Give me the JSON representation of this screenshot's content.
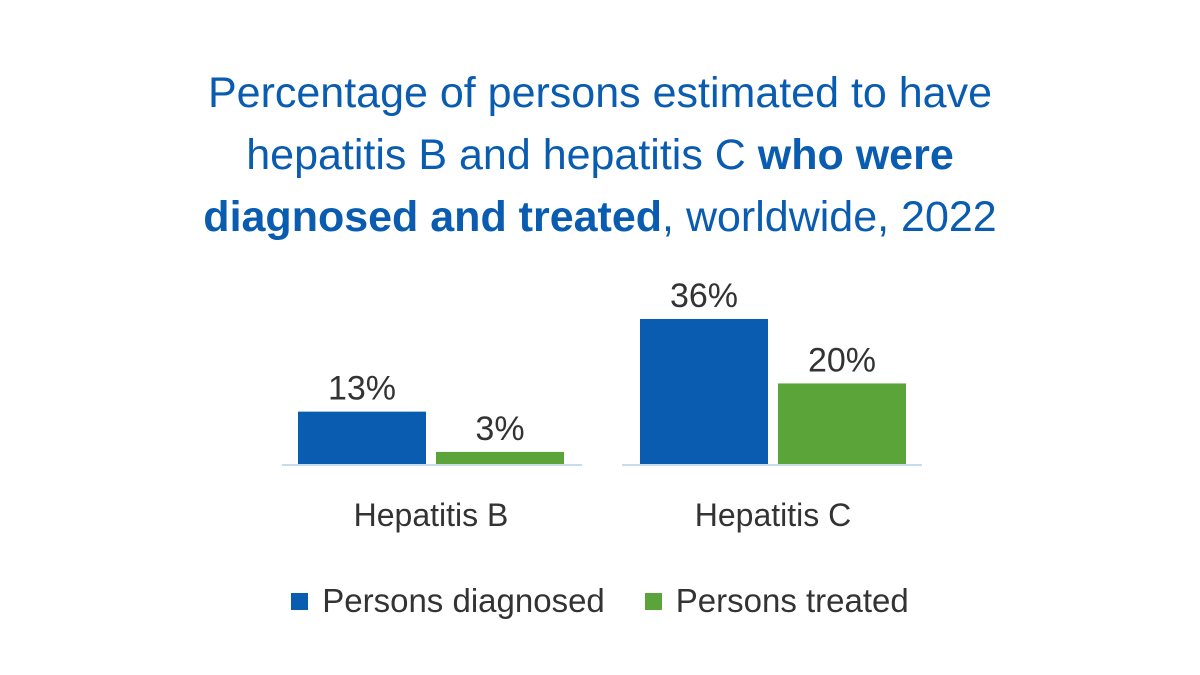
{
  "title": {
    "line1": "Percentage of persons estimated to have",
    "line2_normal": "hepatitis B and hepatitis C ",
    "line2_bold": "who were",
    "line3_bold": "diagnosed and treated",
    "line3_normal": ", worldwide, 2022"
  },
  "colors": {
    "title": "#0a5cb0",
    "diagnosed": "#0a5cb0",
    "treated": "#5aa43a",
    "baseline": "#c9dcee"
  },
  "chart_data": {
    "type": "bar",
    "categories": [
      "Hepatitis B",
      "Hepatitis C"
    ],
    "series": [
      {
        "name": "Persons diagnosed",
        "values": [
          13,
          36
        ],
        "labels": [
          "13%",
          "36%"
        ]
      },
      {
        "name": "Persons treated",
        "values": [
          3,
          20
        ],
        "labels": [
          "3%",
          "20%"
        ]
      }
    ],
    "title": "Percentage of persons estimated to have hepatitis B and hepatitis C who were diagnosed and treated, worldwide, 2022",
    "xlabel": "",
    "ylabel": "",
    "ylim": [
      0,
      36
    ],
    "grid": false,
    "legend": "bottom"
  }
}
